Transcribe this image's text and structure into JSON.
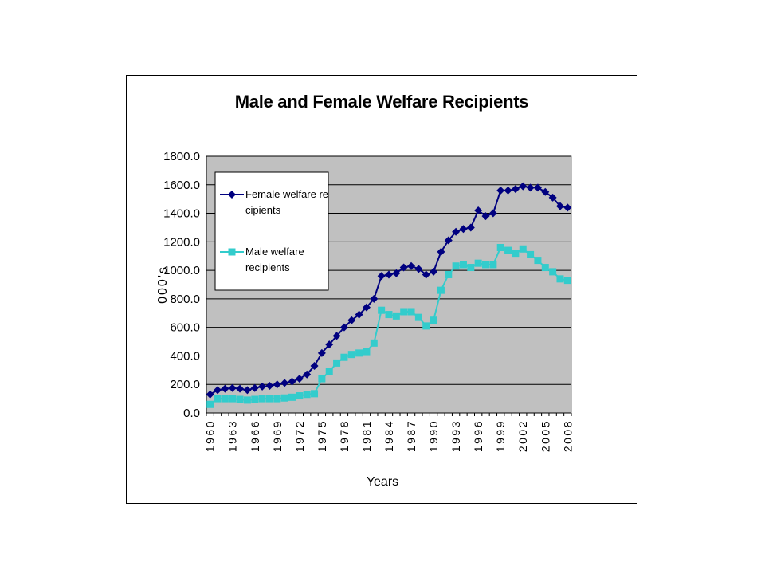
{
  "chart_data": {
    "type": "line",
    "title": "Male and Female Welfare Recipients",
    "xlabel": "Years",
    "ylabel": "000's",
    "ylim": [
      0,
      1800
    ],
    "yticks": [
      "0.0",
      "200.0",
      "400.0",
      "600.0",
      "800.0",
      "1000.0",
      "1200.0",
      "1400.0",
      "1600.0",
      "1800.0"
    ],
    "x": [
      1960,
      1961,
      1962,
      1963,
      1964,
      1965,
      1966,
      1967,
      1968,
      1969,
      1970,
      1971,
      1972,
      1973,
      1974,
      1975,
      1976,
      1977,
      1978,
      1979,
      1980,
      1981,
      1982,
      1983,
      1984,
      1985,
      1986,
      1987,
      1988,
      1989,
      1990,
      1991,
      1992,
      1993,
      1994,
      1995,
      1996,
      1997,
      1998,
      1999,
      2000,
      2001,
      2002,
      2003,
      2004,
      2005,
      2006,
      2007,
      2008
    ],
    "xtick_labels": [
      "1960",
      "1963",
      "1966",
      "1969",
      "1972",
      "1975",
      "1978",
      "1981",
      "1984",
      "1987",
      "1990",
      "1993",
      "1996",
      "1999",
      "2002",
      "2005",
      "2008"
    ],
    "grid": true,
    "plot_background": "#c0c0c0",
    "legend_position": "top-left",
    "series": [
      {
        "name": "Female welfare recipients",
        "legend_lines": [
          "Female welfare re",
          "cipients"
        ],
        "color": "#000080",
        "marker": "diamond",
        "values": [
          130,
          160,
          170,
          175,
          170,
          160,
          175,
          185,
          190,
          200,
          210,
          220,
          240,
          270,
          330,
          420,
          480,
          540,
          600,
          650,
          690,
          740,
          800,
          960,
          970,
          980,
          1020,
          1030,
          1010,
          970,
          990,
          1130,
          1210,
          1270,
          1290,
          1300,
          1420,
          1380,
          1400,
          1560,
          1560,
          1570,
          1590,
          1580,
          1580,
          1550,
          1510,
          1450,
          1440
        ]
      },
      {
        "name": "Male welfare recipients",
        "legend_lines": [
          "Male welfare",
          "recipients"
        ],
        "color": "#33cccc",
        "marker": "square",
        "values": [
          60,
          100,
          100,
          100,
          95,
          90,
          95,
          100,
          100,
          100,
          105,
          110,
          120,
          130,
          135,
          240,
          290,
          350,
          390,
          410,
          420,
          430,
          490,
          720,
          690,
          680,
          710,
          710,
          670,
          610,
          650,
          860,
          970,
          1030,
          1040,
          1020,
          1050,
          1040,
          1040,
          1160,
          1140,
          1120,
          1150,
          1110,
          1070,
          1020,
          990,
          940,
          930
        ]
      }
    ]
  }
}
